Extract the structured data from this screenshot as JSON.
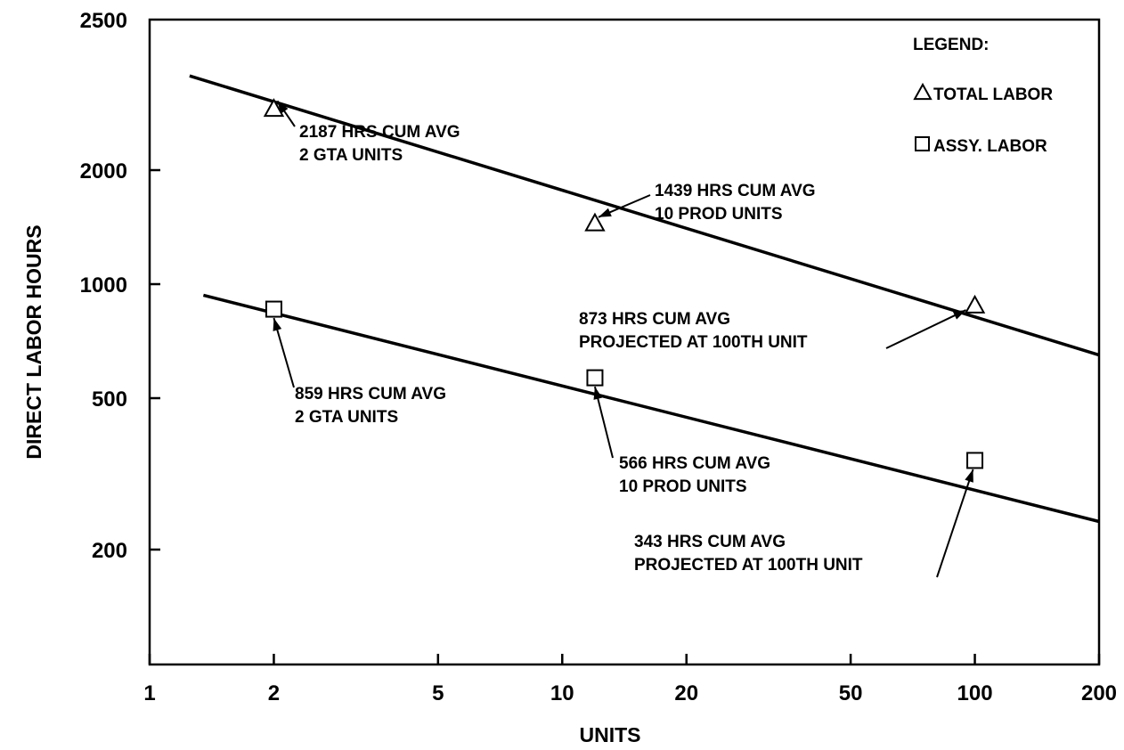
{
  "chart_data": {
    "type": "line",
    "xscale": "log",
    "yscale": "log",
    "xlabel": "UNITS",
    "ylabel": "DIRECT LABOR HOURS",
    "xlim": [
      1,
      200
    ],
    "x_ticks": [
      1,
      2,
      5,
      10,
      20,
      50,
      100,
      200
    ],
    "x_tick_labels": [
      "1",
      "2",
      "5",
      "10",
      "20",
      "50",
      "100",
      "200"
    ],
    "y_ticks": [
      200,
      500,
      1000,
      2000,
      2500
    ],
    "y_tick_labels": [
      "200",
      "500",
      "1000",
      "2000",
      "2500"
    ],
    "grid": false,
    "legend": {
      "title": "LEGEND:",
      "placement": "top-right",
      "items": [
        {
          "marker": "triangle",
          "label": "TOTAL LABOR"
        },
        {
          "marker": "square",
          "label": "ASSY. LABOR"
        }
      ]
    },
    "series": [
      {
        "name": "TOTAL LABOR",
        "marker": "triangle",
        "line": {
          "x": [
            1.25,
            200
          ],
          "y": [
            2300,
            650
          ]
        },
        "points": [
          {
            "x": 2,
            "y": 2187
          },
          {
            "x": 12,
            "y": 1439
          },
          {
            "x": 100,
            "y": 873
          }
        ]
      },
      {
        "name": "ASSY. LABOR",
        "marker": "square",
        "line": {
          "x": [
            1.35,
            200
          ],
          "y": [
            935,
            237
          ]
        },
        "points": [
          {
            "x": 2,
            "y": 859
          },
          {
            "x": 12,
            "y": 566
          },
          {
            "x": 100,
            "y": 343
          }
        ]
      }
    ],
    "annotations": [
      {
        "lines": [
          "2187 HRS  CUM AVG",
          "2 GTA UNITS"
        ]
      },
      {
        "lines": [
          "1439 HRS CUM AVG",
          "10 PROD UNITS"
        ]
      },
      {
        "lines": [
          "873 HRS CUM AVG",
          "PROJECTED AT 100TH UNIT"
        ]
      },
      {
        "lines": [
          "859 HRS CUM AVG",
          "2 GTA UNITS"
        ]
      },
      {
        "lines": [
          "566 HRS CUM AVG",
          "10 PROD UNITS"
        ]
      },
      {
        "lines": [
          "343 HRS CUM AVG",
          "PROJECTED AT 100TH UNIT"
        ]
      }
    ]
  }
}
